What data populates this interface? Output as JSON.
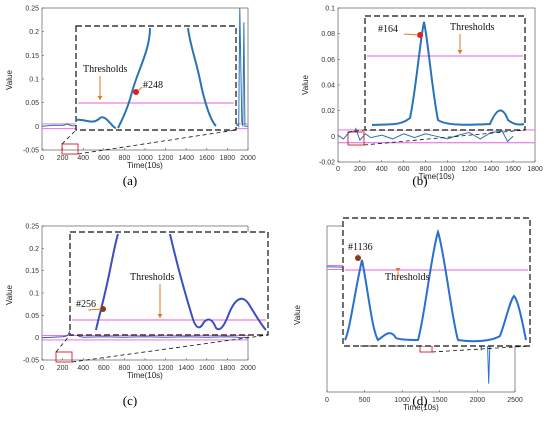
{
  "chart_data": [
    {
      "panel": "a",
      "caption": "(a)",
      "type": "line",
      "xlabel": "Time(10s)",
      "ylabel": "Value",
      "xlim": [
        0,
        2000
      ],
      "ylim": [
        -0.05,
        0.25
      ],
      "xticks": [
        "0",
        "200",
        "400",
        "600",
        "800",
        "1000",
        "1200",
        "1400",
        "1600",
        "1800",
        "2000"
      ],
      "yticks": [
        "-0.05",
        "0",
        "0.05",
        "0.1",
        "0.15",
        "0.2",
        "0.25"
      ],
      "threshold": 0.005,
      "detected_index": 248,
      "annotation_label": "#248",
      "threshold_label": "Thresholds",
      "line_color": "#2a74b4",
      "threshold_color": "#e060e0",
      "series": {
        "x": [
          0,
          100,
          200,
          240,
          248,
          260,
          300,
          400,
          600,
          800,
          1000,
          1200,
          1400,
          1600,
          1800,
          1900,
          1910,
          1920,
          1940,
          1950,
          1960,
          1970,
          2000
        ],
        "y": [
          0,
          0.002,
          0.002,
          0.004,
          0.006,
          0.003,
          0.001,
          0.002,
          0.001,
          0.002,
          0.002,
          0.001,
          0.002,
          0.001,
          0.002,
          0.003,
          0.0,
          0.25,
          0.01,
          0.0,
          0.22,
          0.0,
          0.0
        ]
      }
    },
    {
      "panel": "b",
      "caption": "(b)",
      "type": "line",
      "xlabel": "Time(10s)",
      "ylabel": "Value",
      "xlim": [
        0,
        1800
      ],
      "ylim": [
        -0.02,
        0.1
      ],
      "xticks": [
        "0",
        "200",
        "400",
        "600",
        "800",
        "1000",
        "1200",
        "1400",
        "1600",
        "1800"
      ],
      "yticks": [
        "-0.02",
        "0",
        "0.02",
        "0.04",
        "0.06",
        "0.08",
        "0.1"
      ],
      "threshold": 0.005,
      "detected_index": 164,
      "annotation_label": "#164",
      "threshold_label": "Thresholds",
      "line_color": "#2a74b4",
      "threshold_color": "#e060e0",
      "series": {
        "x": [
          0,
          50,
          100,
          150,
          164,
          180,
          200,
          250,
          300,
          400,
          500,
          600,
          700,
          800,
          900,
          1000,
          1100,
          1200,
          1300,
          1400,
          1500,
          1550,
          1600
        ],
        "y": [
          0.001,
          -0.002,
          0.003,
          0.004,
          0.006,
          0.002,
          -0.003,
          0.002,
          -0.001,
          0.001,
          -0.002,
          0.002,
          -0.001,
          0.002,
          0.0,
          -0.002,
          0.001,
          0.003,
          -0.002,
          0.003,
          0.004,
          -0.004,
          0.0
        ]
      }
    },
    {
      "panel": "c",
      "caption": "(c)",
      "type": "line",
      "xlabel": "Time(10s)",
      "ylabel": "Value",
      "xlim": [
        0,
        2000
      ],
      "ylim": [
        -0.05,
        0.25
      ],
      "xticks": [
        "0",
        "200",
        "400",
        "600",
        "800",
        "1000",
        "1200",
        "1400",
        "1600",
        "1800",
        "2000"
      ],
      "yticks": [
        "-0.05",
        "0",
        "0.05",
        "0.1",
        "0.15",
        "0.2",
        "0.25"
      ],
      "threshold": 0.005,
      "detected_index": 256,
      "annotation_label": "#256",
      "threshold_label": "Thresholds",
      "line_color": "#3b4fc2",
      "threshold_color": "#e060e0",
      "series": {
        "x": [
          0,
          100,
          200,
          240,
          256,
          270,
          300,
          330,
          360,
          400,
          600,
          800,
          1000,
          1200,
          1400,
          1600,
          1800,
          1900,
          1920,
          1940,
          1960,
          2000
        ],
        "y": [
          0,
          0.001,
          0.002,
          0.004,
          0.008,
          0.015,
          0.012,
          0.008,
          0.003,
          0.001,
          0.002,
          0.001,
          0.002,
          0.001,
          0.002,
          0.001,
          0.002,
          0.001,
          0.0,
          0.0,
          0.001,
          0.0
        ]
      }
    },
    {
      "panel": "d",
      "caption": "(d)",
      "type": "line",
      "xlabel": "Time(10s)",
      "ylabel": "Value",
      "xlim": [
        0,
        2500
      ],
      "ylim": [
        -0.3,
        0.1
      ],
      "xticks": [
        "0",
        "500",
        "1000",
        "1500",
        "2000",
        "2500"
      ],
      "yticks": [],
      "threshold": 0.005,
      "detected_index": 1136,
      "annotation_label": "#1136",
      "threshold_label": "Thresholds",
      "line_color": "#2a6fd0",
      "threshold_color": "#e060e0",
      "series": {
        "x": [
          0,
          200,
          400,
          600,
          800,
          1000,
          1100,
          1136,
          1200,
          1300,
          1400,
          1500,
          1600,
          1700,
          1800,
          1850,
          1900,
          1950,
          2000,
          2050,
          2100,
          2150,
          2200,
          2250,
          2300
        ],
        "y": [
          0.002,
          0.001,
          0.002,
          0.001,
          0.002,
          0.001,
          0.003,
          0.006,
          0.002,
          0.001,
          0.002,
          0.004,
          0.003,
          -0.02,
          0.04,
          -0.05,
          0.03,
          -0.12,
          0.05,
          -0.2,
          0.03,
          -0.28,
          0.02,
          -0.1,
          0.0
        ]
      }
    }
  ]
}
